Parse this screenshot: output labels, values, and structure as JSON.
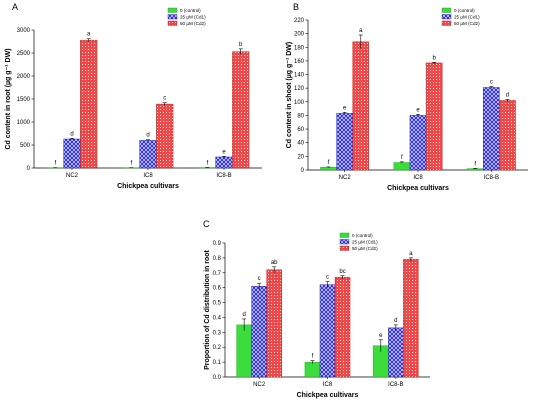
{
  "colors": {
    "control": "#3ddc3d",
    "cd1": "#2424e0",
    "cd2": "#f04848",
    "grid_hatch_cd1": "#ffffff",
    "grid_dots_cd2": "#ffffff"
  },
  "chart_data": [
    {
      "panel": "A",
      "type": "bar",
      "categories": [
        "NC2",
        "IC8",
        "IC8-B"
      ],
      "series": [
        {
          "name": "0 (control)",
          "values": [
            5,
            5,
            10
          ],
          "errors": [
            2,
            2,
            2
          ],
          "letters": [
            "f",
            "f",
            "f"
          ]
        },
        {
          "name": "25 µM (Cd1)",
          "values": [
            630,
            600,
            240
          ],
          "errors": [
            15,
            15,
            12
          ],
          "letters": [
            "d",
            "d",
            "e"
          ]
        },
        {
          "name": "50 µM (Cd2)",
          "values": [
            2780,
            1390,
            2530
          ],
          "errors": [
            30,
            30,
            60
          ],
          "letters": [
            "a",
            "c",
            "b"
          ]
        }
      ],
      "xlabel": "Chickpea cultivars",
      "ylabel": "Cd content in root (µg g⁻¹ DW)",
      "ylim": [
        0,
        3000
      ],
      "yticks": [
        0,
        500,
        1000,
        1500,
        2000,
        2500,
        3000
      ],
      "legend": "top-right"
    },
    {
      "panel": "B",
      "type": "bar",
      "categories": [
        "NC2",
        "IC8",
        "IC8-B"
      ],
      "series": [
        {
          "name": "0 (control)",
          "values": [
            4,
            11,
            2
          ],
          "errors": [
            0.5,
            1,
            0.5
          ],
          "letters": [
            "f",
            "f",
            "f"
          ]
        },
        {
          "name": "25 µM (Cd1)",
          "values": [
            83,
            80,
            121
          ],
          "errors": [
            1.5,
            1.5,
            1.5
          ],
          "letters": [
            "e",
            "e",
            "c"
          ]
        },
        {
          "name": "50 µM (Cd2)",
          "values": [
            188,
            157,
            102
          ],
          "errors": [
            10,
            1,
            1.5
          ],
          "letters": [
            "a",
            "b",
            "d"
          ]
        }
      ],
      "xlabel": "Chickpea cultivars",
      "ylabel": "Cd content in shoot (µg g⁻¹ DW)",
      "ylim": [
        0,
        220
      ],
      "yticks": [
        0,
        20,
        40,
        60,
        80,
        100,
        120,
        140,
        160,
        180,
        200,
        220
      ],
      "legend": "top-right"
    },
    {
      "panel": "C",
      "type": "bar",
      "categories": [
        "NC2",
        "IC8",
        "IC8-B"
      ],
      "series": [
        {
          "name": "0 (control)",
          "values": [
            0.35,
            0.1,
            0.21
          ],
          "errors": [
            0.04,
            0.01,
            0.04
          ],
          "letters": [
            "d",
            "f",
            "e"
          ]
        },
        {
          "name": "25 µM (Cd1)",
          "values": [
            0.61,
            0.62,
            0.33
          ],
          "errors": [
            0.02,
            0.02,
            0.02
          ],
          "letters": [
            "c",
            "c",
            "d"
          ]
        },
        {
          "name": "50 µM (Cd2)",
          "values": [
            0.72,
            0.67,
            0.79
          ],
          "errors": [
            0.02,
            0.01,
            0.01
          ],
          "letters": [
            "ab",
            "bc",
            "a"
          ]
        }
      ],
      "xlabel": "Chickpea cultivars",
      "ylabel": "Proportion of Cd distribution in root",
      "ylim": [
        0,
        0.9
      ],
      "yticks": [
        0.0,
        0.1,
        0.2,
        0.3,
        0.4,
        0.5,
        0.6,
        0.7,
        0.8,
        0.9
      ],
      "legend": "top-right"
    }
  ]
}
